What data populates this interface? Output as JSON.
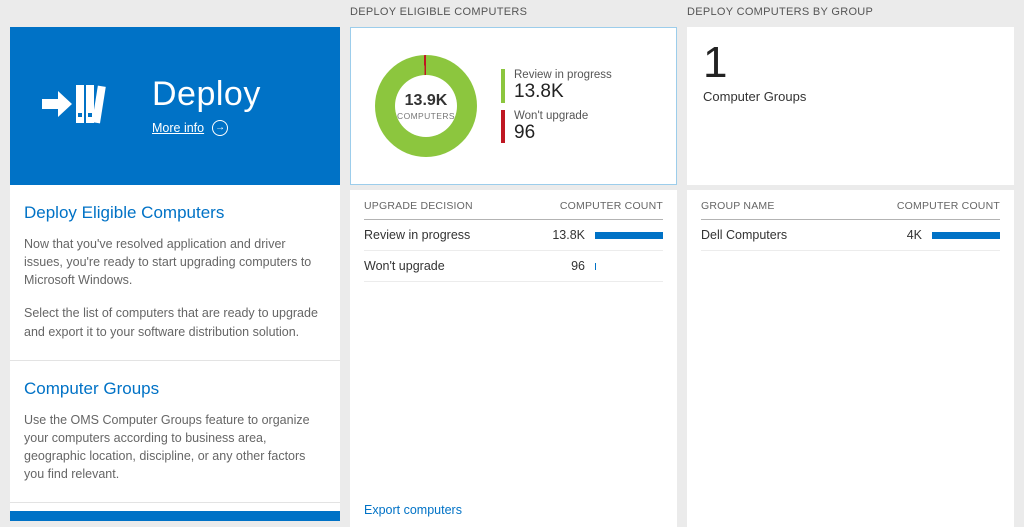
{
  "colors": {
    "accent": "#0072c6",
    "bar": "#0072c6",
    "green": "#8cc63e",
    "red": "#bf1722"
  },
  "left": {
    "tile": {
      "title": "Deploy",
      "more_info_label": "More info"
    },
    "sections": [
      {
        "title": "Deploy Eligible Computers",
        "paragraphs": [
          "Now that you've resolved application and driver issues, you're ready to start upgrading computers to Microsoft Windows.",
          "Select the list of computers that are ready to upgrade and export it to your software distribution solution."
        ]
      },
      {
        "title": "Computer Groups",
        "paragraphs": [
          "Use the OMS Computer Groups feature to organize your computers according to business area, geographic location, discipline, or any other factors you find relevant."
        ]
      }
    ]
  },
  "middle": {
    "header": "DEPLOY ELIGIBLE COMPUTERS",
    "donut": {
      "center_value": "13.9K",
      "center_label": "COMPUTERS",
      "segments": [
        {
          "label": "Review in progress",
          "value": 13800,
          "display": "13.8K",
          "color": "#8cc63e"
        },
        {
          "label": "Won't upgrade",
          "value": 96,
          "display": "96",
          "color": "#bf1722"
        }
      ]
    },
    "table": {
      "columns": [
        "UPGRADE DECISION",
        "COMPUTER COUNT"
      ],
      "rows": [
        {
          "label": "Review in progress",
          "value": "13.8K",
          "bar_pct": 100
        },
        {
          "label": "Won't upgrade",
          "value": "96",
          "bar_pct": 2
        }
      ]
    },
    "footer_link": "Export computers"
  },
  "right": {
    "header": "DEPLOY COMPUTERS BY GROUP",
    "summary": {
      "count": "1",
      "label": "Computer Groups"
    },
    "table": {
      "columns": [
        "GROUP NAME",
        "COMPUTER COUNT"
      ],
      "rows": [
        {
          "label": "Dell Computers",
          "value": "4K",
          "bar_pct": 100
        }
      ]
    }
  }
}
